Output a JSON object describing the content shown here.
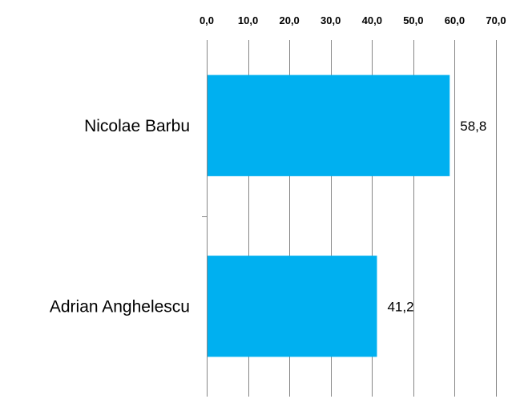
{
  "chart_data": {
    "type": "bar",
    "orientation": "horizontal",
    "categories": [
      "Nicolae Barbu",
      "Adrian Anghelescu"
    ],
    "values": [
      58.8,
      41.2
    ],
    "value_labels": [
      "58,8",
      "41,2"
    ],
    "xlim": [
      0,
      70
    ],
    "x_ticks": [
      0,
      10,
      20,
      30,
      40,
      50,
      60,
      70
    ],
    "x_tick_labels": [
      "0,0",
      "10,0",
      "20,0",
      "30,0",
      "40,0",
      "50,0",
      "60,0",
      "70,0"
    ],
    "x_axis_position": "top",
    "grid": "vertical",
    "legend": "none",
    "colors": {
      "bar": "#00b0f0",
      "grid": "#868686",
      "text": "#000000"
    }
  }
}
